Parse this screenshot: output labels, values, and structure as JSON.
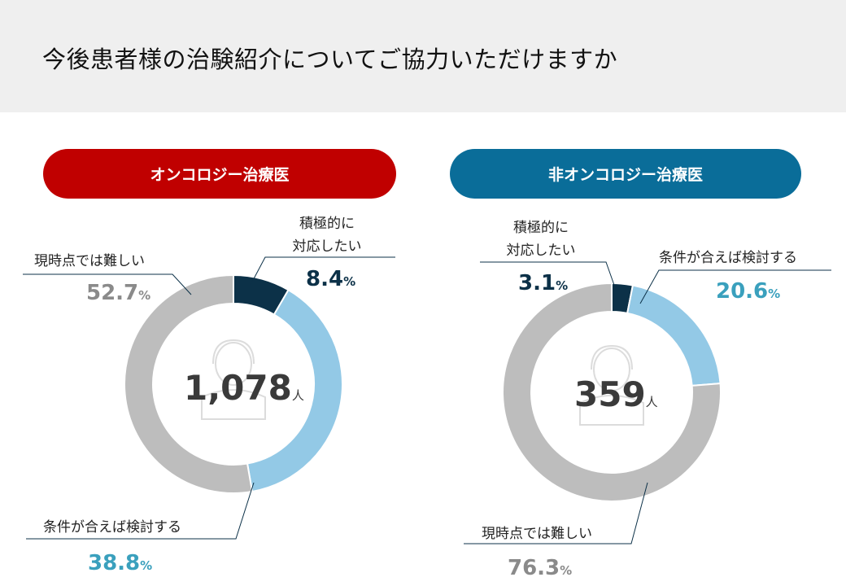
{
  "title": "今後患者様の治験紹介についてご協力いただけますか",
  "colors": {
    "dark": "#0c3148",
    "light": "#93c9e6",
    "gray": "#bdbdbd",
    "red": "#c00000",
    "blue": "#0a6d99",
    "teal": "#3aa0bd"
  },
  "chart_data": [
    {
      "type": "pie",
      "title": "オンコロジー治療医",
      "total": "1,078",
      "total_unit": "人",
      "categories": [
        "積極的に対応したい",
        "条件が合えば検討する",
        "現時点では難しい"
      ],
      "values": [
        8.4,
        38.8,
        52.7
      ],
      "value_unit": "%"
    },
    {
      "type": "pie",
      "title": "非オンコロジー治療医",
      "total": "359",
      "total_unit": "人",
      "categories": [
        "積極的に対応したい",
        "条件が合えば検討する",
        "現時点では難しい"
      ],
      "values": [
        3.1,
        20.6,
        76.3
      ],
      "value_unit": "%"
    }
  ],
  "labels": {
    "left": {
      "c0_line1": "積極的に",
      "c0_line2": "対応したい",
      "c1": "条件が合えば検討する",
      "c2": "現時点では難しい",
      "v0": "8.4",
      "v1": "38.8",
      "v2": "52.7"
    },
    "right": {
      "c0_line1": "積極的に",
      "c0_line2": "対応したい",
      "c1": "条件が合えば検討する",
      "c2": "現時点では難しい",
      "v0": "3.1",
      "v1": "20.6",
      "v2": "76.3"
    }
  }
}
